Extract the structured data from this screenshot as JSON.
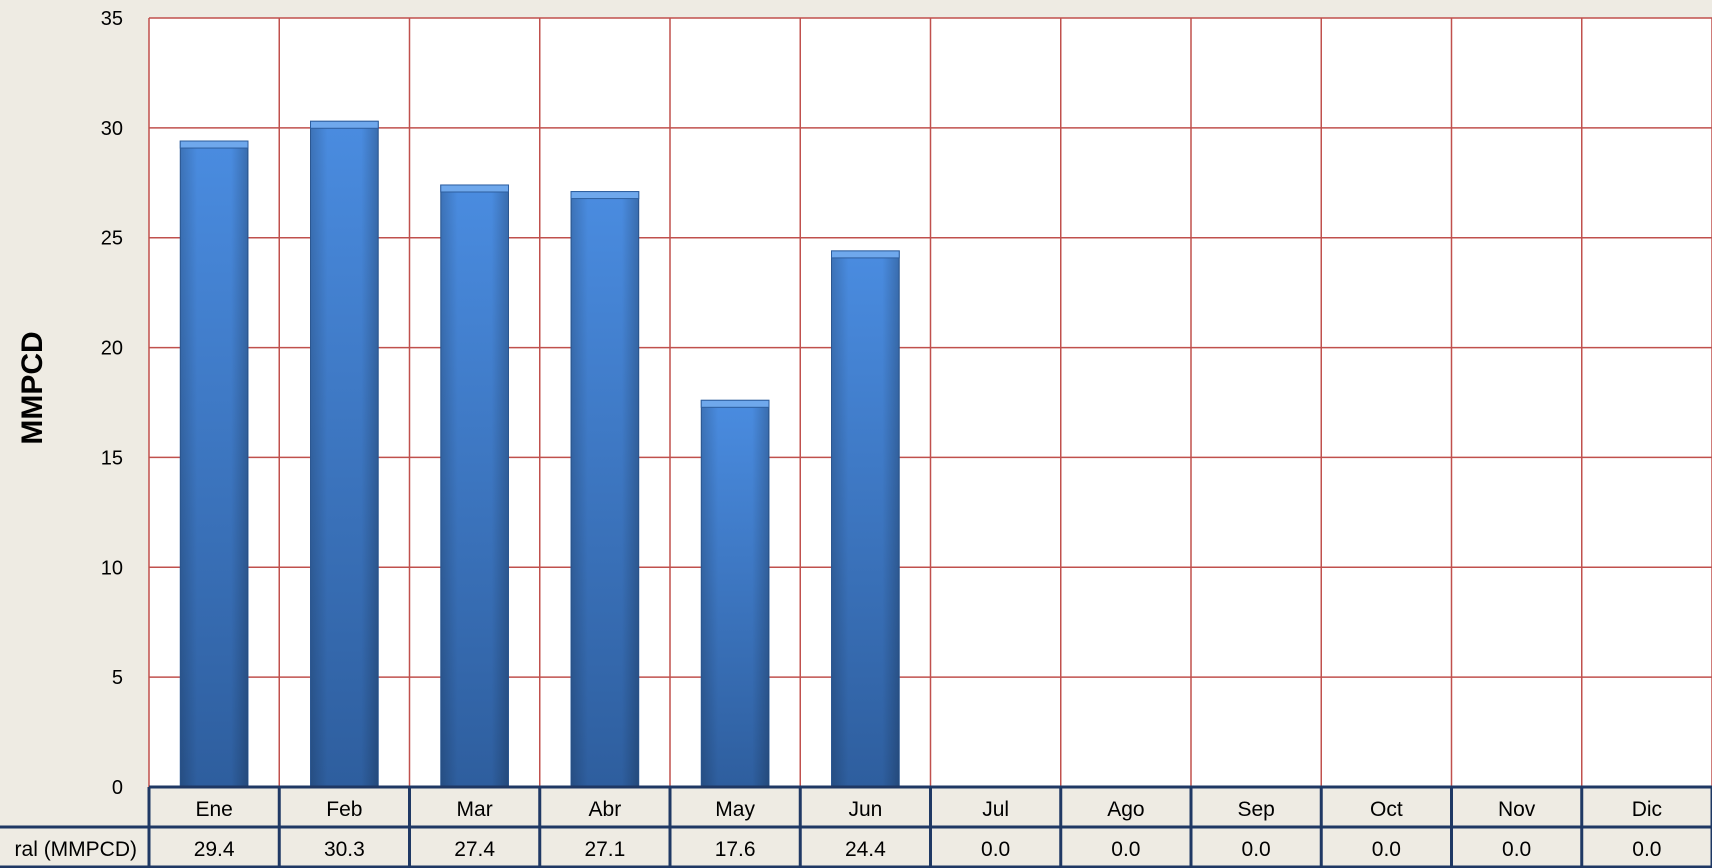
{
  "chart_data": {
    "type": "bar",
    "title": "",
    "xlabel": "",
    "ylabel": "MMPCD",
    "ylim": [
      0,
      35
    ],
    "y_ticks": [
      0,
      5,
      10,
      15,
      20,
      25,
      30,
      35
    ],
    "grid": true,
    "categories": [
      "Ene",
      "Feb",
      "Mar",
      "Abr",
      "May",
      "Jun",
      "Jul",
      "Ago",
      "Sep",
      "Oct",
      "Nov",
      "Dic"
    ],
    "series": [
      {
        "name": "ral (MMPCD)",
        "values": [
          29.4,
          30.3,
          27.4,
          27.1,
          17.6,
          24.4,
          0.0,
          0.0,
          0.0,
          0.0,
          0.0,
          0.0
        ],
        "value_labels": [
          "29.4",
          "30.3",
          "27.4",
          "27.1",
          "17.6",
          "24.4",
          "0.0",
          "0.0",
          "0.0",
          "0.0",
          "0.0",
          "0.0"
        ]
      }
    ],
    "colors": {
      "bar_light": "#4A8CE0",
      "bar_dark": "#2E5E9E",
      "bar_top": "#6FA8EC",
      "grid": "#C0504D",
      "table_border": "#1F3864",
      "plot_bg": "#FFFFFF",
      "page_bg": "#EEEBE3"
    }
  }
}
